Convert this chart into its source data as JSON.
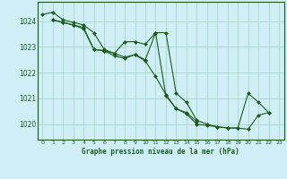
{
  "title": "Graphe pression niveau de la mer (hPa)",
  "background_color": "#d0eef5",
  "grid_color": "#a8d8c8",
  "line_color": "#1a5c1a",
  "marker_color": "#1a5c1a",
  "xlim": [
    -0.5,
    23.5
  ],
  "ylim": [
    1019.4,
    1024.75
  ],
  "yticks": [
    1020,
    1021,
    1022,
    1023,
    1024
  ],
  "xticks": [
    0,
    1,
    2,
    3,
    4,
    5,
    6,
    7,
    8,
    9,
    10,
    11,
    12,
    13,
    14,
    15,
    16,
    17,
    18,
    19,
    20,
    21,
    22,
    23
  ],
  "series": [
    {
      "x": [
        0,
        1,
        2,
        3,
        4,
        5,
        6,
        7,
        8,
        9,
        10,
        11,
        12,
        13,
        14,
        15,
        16,
        17,
        18,
        19,
        20,
        21,
        22
      ],
      "y": [
        1024.25,
        1024.35,
        1024.05,
        1023.95,
        1023.85,
        1023.55,
        1022.9,
        1022.75,
        1023.2,
        1023.2,
        1023.1,
        1023.55,
        1023.55,
        1021.2,
        1020.85,
        1020.15,
        1020.0,
        1019.9,
        1019.85,
        1019.85,
        1019.8,
        1020.35,
        1020.45
      ]
    },
    {
      "x": [
        1,
        2,
        3,
        4,
        5,
        6,
        7,
        8,
        9,
        10,
        11,
        12,
        13,
        14,
        15,
        16,
        17,
        18,
        19,
        20,
        21,
        22
      ],
      "y": [
        1024.05,
        1023.95,
        1023.85,
        1023.7,
        1022.9,
        1022.85,
        1022.65,
        1022.55,
        1022.7,
        1022.5,
        1023.55,
        1021.1,
        1020.6,
        1020.4,
        1020.0,
        1019.95,
        1019.9,
        1019.85,
        1019.85,
        1021.2,
        1020.85,
        1020.45
      ]
    },
    {
      "x": [
        1,
        2,
        3,
        4,
        5,
        6,
        7,
        8,
        9,
        10,
        11,
        12,
        13,
        14,
        15
      ],
      "y": [
        1024.05,
        1023.95,
        1023.85,
        1023.75,
        1022.9,
        1022.85,
        1022.75,
        1022.6,
        1022.7,
        1022.45,
        1021.85,
        1021.15,
        1020.6,
        1020.45,
        1020.1
      ]
    }
  ]
}
